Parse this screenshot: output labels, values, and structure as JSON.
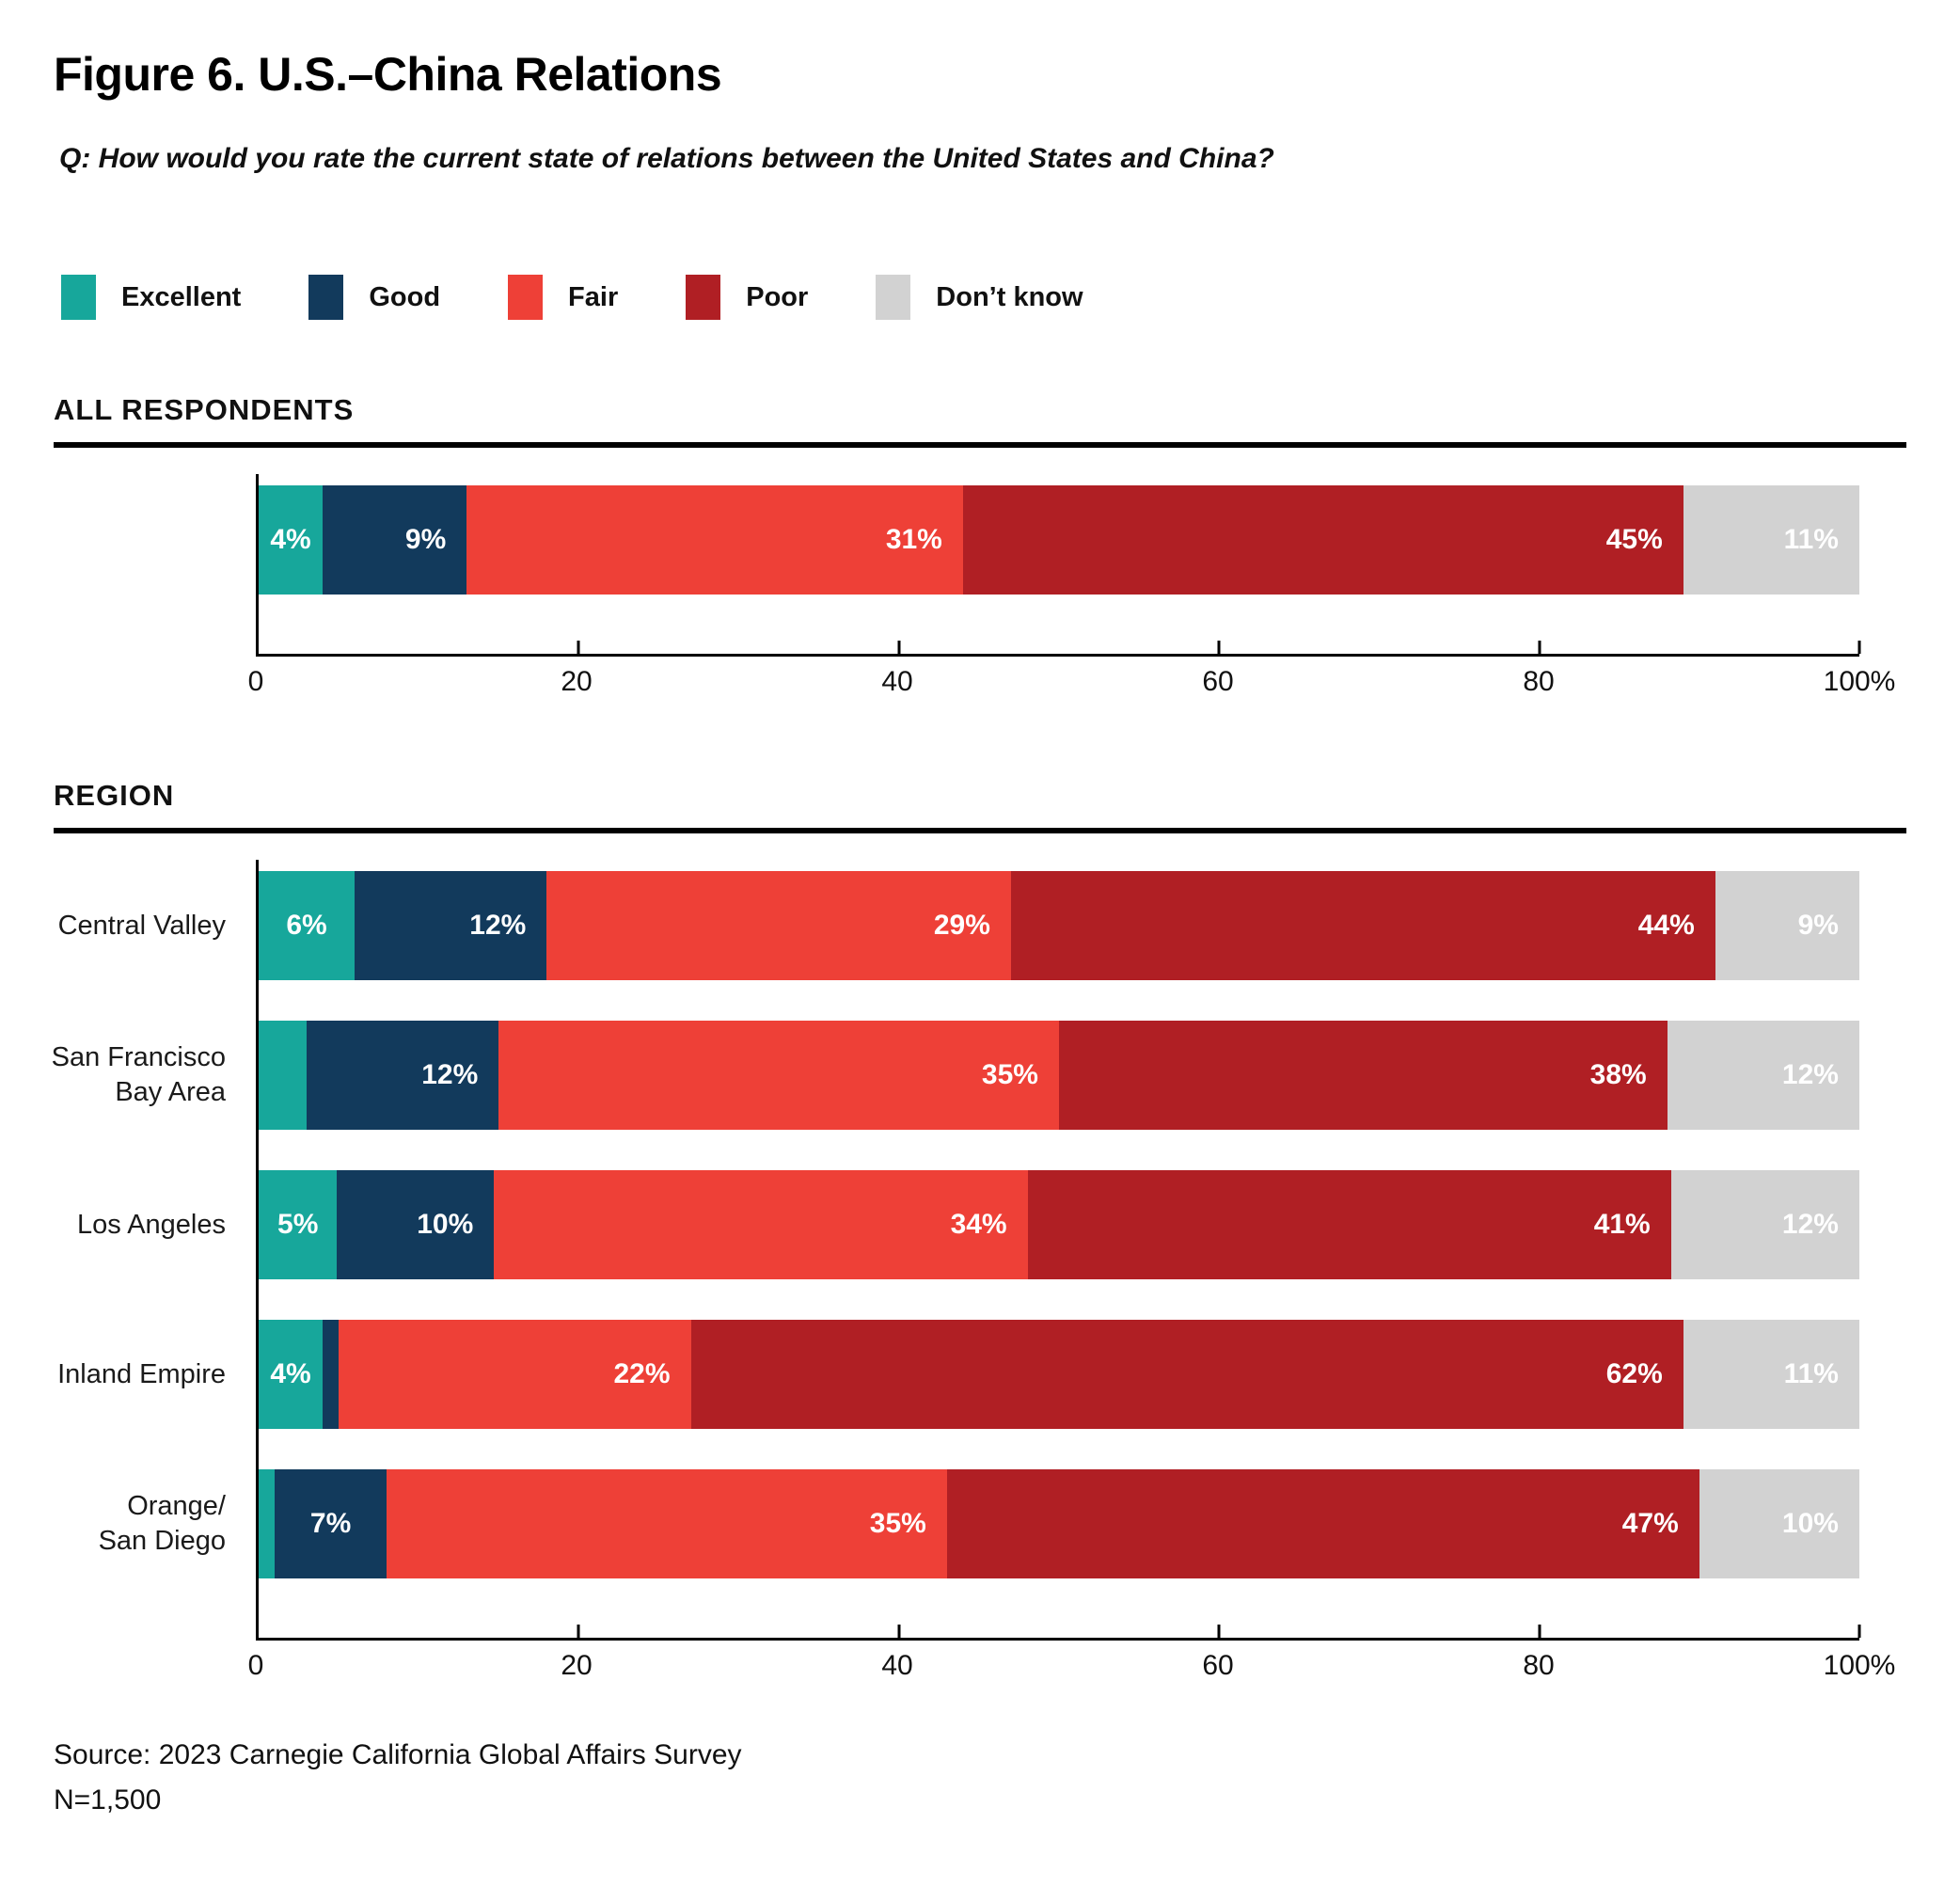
{
  "title": "Figure 6. U.S.–China Relations",
  "question": "Q: How would you rate the current state of relations between the United States and China?",
  "legend": [
    {
      "label": "Excellent",
      "color": "#17A79B"
    },
    {
      "label": "Good",
      "color": "#123A5C"
    },
    {
      "label": "Fair",
      "color": "#EE4037"
    },
    {
      "label": "Poor",
      "color": "#B01F24"
    },
    {
      "label": "Don’t know",
      "color": "#D2D2D2"
    }
  ],
  "chart_data": [
    {
      "type": "bar",
      "orientation": "horizontal",
      "stacked": true,
      "section": "ALL RESPONDENTS",
      "categories": [
        "All respondents"
      ],
      "category_lines": [
        []
      ],
      "series": [
        {
          "name": "Excellent",
          "color": "#17A79B",
          "values": [
            4
          ],
          "labels": [
            "4%"
          ]
        },
        {
          "name": "Good",
          "color": "#123A5C",
          "values": [
            9
          ],
          "labels": [
            "9%"
          ]
        },
        {
          "name": "Fair",
          "color": "#EE4037",
          "values": [
            31
          ],
          "labels": [
            "31%"
          ]
        },
        {
          "name": "Poor",
          "color": "#B01F24",
          "values": [
            45
          ],
          "labels": [
            "45%"
          ]
        },
        {
          "name": "Don’t know",
          "color": "#D2D2D2",
          "values": [
            11
          ],
          "labels": [
            "11%"
          ]
        }
      ],
      "xlim": [
        0,
        100
      ],
      "grid": false,
      "ticks": [
        {
          "value": 0,
          "label": "0"
        },
        {
          "value": 20,
          "label": "20"
        },
        {
          "value": 40,
          "label": "40"
        },
        {
          "value": 60,
          "label": "60"
        },
        {
          "value": 80,
          "label": "80"
        },
        {
          "value": 100,
          "label": "100%"
        }
      ]
    },
    {
      "type": "bar",
      "orientation": "horizontal",
      "stacked": true,
      "section": "REGION",
      "categories": [
        "Central Valley",
        "San Francisco Bay Area",
        "Los Angeles",
        "Inland Empire",
        "Orange/San Diego"
      ],
      "category_lines": [
        [
          "Central Valley"
        ],
        [
          "San Francisco",
          "Bay Area"
        ],
        [
          "Los Angeles"
        ],
        [
          "Inland Empire"
        ],
        [
          "Orange/",
          "San Diego"
        ]
      ],
      "series": [
        {
          "name": "Excellent",
          "color": "#17A79B",
          "values": [
            6,
            3,
            5,
            4,
            1
          ],
          "labels": [
            "6%",
            "",
            "5%",
            "4%",
            ""
          ]
        },
        {
          "name": "Good",
          "color": "#123A5C",
          "values": [
            12,
            12,
            10,
            1,
            7
          ],
          "labels": [
            "12%",
            "12%",
            "10%",
            "",
            "7%"
          ]
        },
        {
          "name": "Fair",
          "color": "#EE4037",
          "values": [
            29,
            35,
            34,
            22,
            35
          ],
          "labels": [
            "29%",
            "35%",
            "34%",
            "22%",
            "35%"
          ]
        },
        {
          "name": "Poor",
          "color": "#B01F24",
          "values": [
            44,
            38,
            41,
            62,
            47
          ],
          "labels": [
            "44%",
            "38%",
            "41%",
            "62%",
            "47%"
          ]
        },
        {
          "name": "Don’t know",
          "color": "#D2D2D2",
          "values": [
            9,
            12,
            12,
            11,
            10
          ],
          "labels": [
            "9%",
            "12%",
            "12%",
            "11%",
            "10%"
          ]
        }
      ],
      "xlim": [
        0,
        100
      ],
      "grid": false,
      "ticks": [
        {
          "value": 0,
          "label": "0"
        },
        {
          "value": 20,
          "label": "20"
        },
        {
          "value": 40,
          "label": "40"
        },
        {
          "value": 60,
          "label": "60"
        },
        {
          "value": 80,
          "label": "80"
        },
        {
          "value": 100,
          "label": "100%"
        }
      ]
    }
  ],
  "source": "Source: 2023 Carnegie California Global Affairs Survey",
  "sample_size": "N=1,500"
}
